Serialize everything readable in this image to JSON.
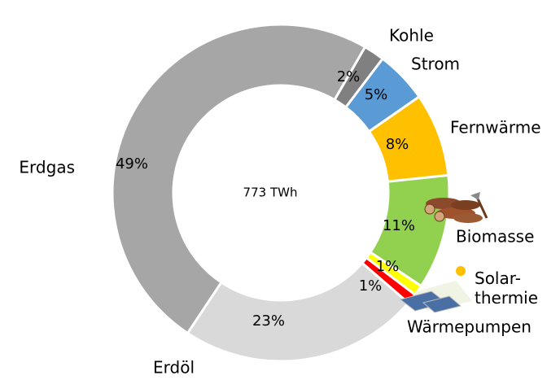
{
  "chart_data": {
    "type": "donut",
    "center_label": "773 TWh",
    "categories": [
      "Kohle",
      "Strom",
      "Fernwärme",
      "Biomasse",
      "Solar-\nthermie",
      "Wärmepumpen",
      "Erdöl",
      "Erdgas"
    ],
    "values": [
      2,
      5,
      8,
      11,
      1,
      1,
      23,
      49
    ],
    "value_labels": [
      "2%",
      "5%",
      "8%",
      "11%",
      "1%",
      "1%",
      "23%",
      "49%"
    ],
    "colors": [
      "#808080",
      "#5b9bd5",
      "#ffc000",
      "#92d050",
      "#ffff00",
      "#ff0000",
      "#d9d9d9",
      "#a6a6a6"
    ]
  }
}
